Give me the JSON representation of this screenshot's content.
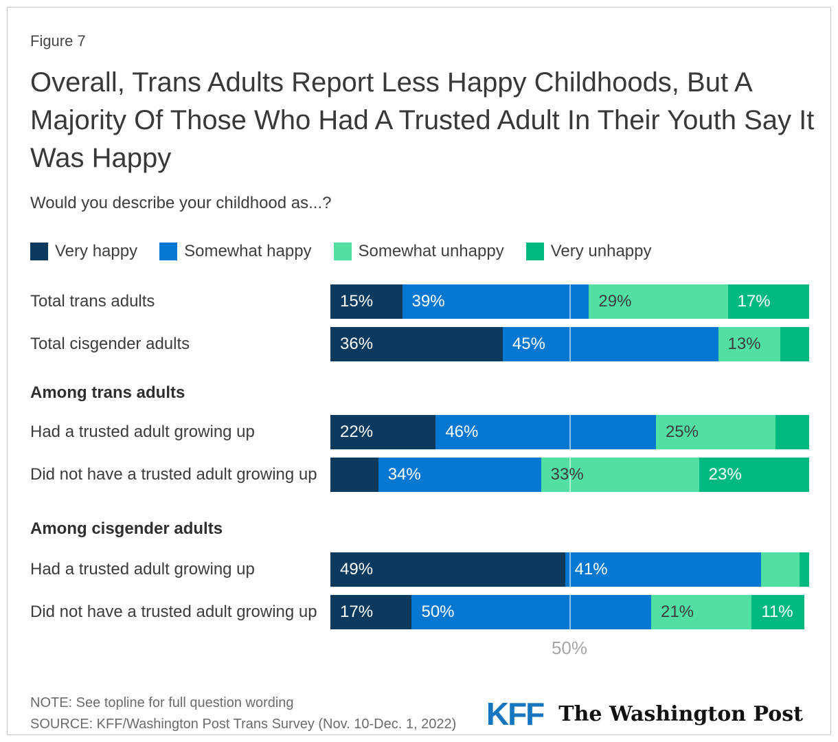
{
  "figure_label": "Figure 7",
  "title": "Overall, Trans Adults Report Less Happy Childhoods, But A Majority Of Those Who Had A Trusted Adult In Their Youth Say It Was Happy",
  "subtitle": "Would you describe your childhood as...?",
  "chart_data": {
    "type": "bar",
    "orientation": "horizontal",
    "stacked": true,
    "axis": {
      "xlim": [
        0,
        100
      ],
      "gridline_value": 50,
      "gridline_label": "50%"
    },
    "legend_position": "top",
    "series": [
      {
        "name": "Very happy",
        "color": "#0c3a5e",
        "label_color": "#ffffff"
      },
      {
        "name": "Somewhat happy",
        "color": "#0778d1",
        "label_color": "#ffffff"
      },
      {
        "name": "Somewhat unhappy",
        "color": "#52dfa3",
        "label_color": "#3d3d3d"
      },
      {
        "name": "Very unhappy",
        "color": "#00b980",
        "label_color": "#ffffff"
      }
    ],
    "rows": [
      {
        "kind": "bar",
        "label": "Total trans adults",
        "segments": [
          {
            "value": 15,
            "label": "15%"
          },
          {
            "value": 39,
            "label": "39%"
          },
          {
            "value": 29,
            "label": "29%"
          },
          {
            "value": 17,
            "label": "17%"
          }
        ]
      },
      {
        "kind": "bar",
        "label": "Total cisgender adults",
        "segments": [
          {
            "value": 36,
            "label": "36%"
          },
          {
            "value": 45,
            "label": "45%"
          },
          {
            "value": 13,
            "label": "13%"
          },
          {
            "value": 6,
            "label": null
          }
        ]
      },
      {
        "kind": "section",
        "label": "Among trans adults"
      },
      {
        "kind": "bar",
        "label": "Had a trusted adult growing up",
        "segments": [
          {
            "value": 22,
            "label": "22%"
          },
          {
            "value": 46,
            "label": "46%"
          },
          {
            "value": 25,
            "label": "25%"
          },
          {
            "value": 7,
            "label": null
          }
        ]
      },
      {
        "kind": "bar",
        "label": "Did not have a trusted adult growing up",
        "segments": [
          {
            "value": 10,
            "label": null
          },
          {
            "value": 34,
            "label": "34%"
          },
          {
            "value": 33,
            "label": "33%"
          },
          {
            "value": 23,
            "label": "23%"
          }
        ]
      },
      {
        "kind": "section",
        "label": "Among cisgender adults"
      },
      {
        "kind": "bar",
        "label": "Had a trusted adult growing up",
        "segments": [
          {
            "value": 49,
            "label": "49%"
          },
          {
            "value": 41,
            "label": "41%"
          },
          {
            "value": 8,
            "label": null
          },
          {
            "value": 2,
            "label": null
          }
        ]
      },
      {
        "kind": "bar",
        "label": "Did not have a trusted adult growing up",
        "segments": [
          {
            "value": 17,
            "label": "17%"
          },
          {
            "value": 50,
            "label": "50%"
          },
          {
            "value": 21,
            "label": "21%"
          },
          {
            "value": 11,
            "label": "11%"
          }
        ]
      }
    ]
  },
  "footer": {
    "note": "NOTE: See topline for full question wording",
    "source": "SOURCE: KFF/Washington Post Trans Survey (Nov. 10-Dec. 1, 2022)",
    "logos": {
      "kff": "KFF",
      "kff_color": "#1576bf",
      "wapo": "The Washington Post"
    }
  }
}
